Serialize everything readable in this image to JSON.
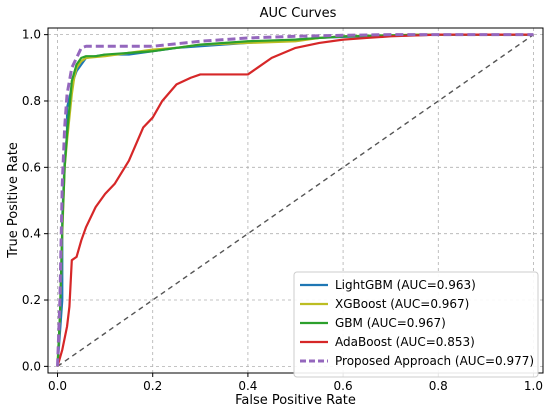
{
  "chart_data": {
    "type": "line",
    "title": "AUC Curves",
    "xlabel": "False Positive Rate",
    "ylabel": "True Positive Rate",
    "xlim": [
      -0.02,
      1.02
    ],
    "ylim": [
      -0.02,
      1.02
    ],
    "xticks": [
      "0.0",
      "0.2",
      "0.4",
      "0.6",
      "0.8",
      "1.0"
    ],
    "yticks": [
      "0.0",
      "0.2",
      "0.4",
      "0.6",
      "0.8",
      "1.0"
    ],
    "grid": true,
    "legend_position": "bottom-right",
    "reference_line": {
      "x": [
        0,
        1
      ],
      "y": [
        0,
        1
      ],
      "color": "#555555",
      "style": "dashed"
    },
    "series": [
      {
        "name": "LightGBM (AUC=0.963)",
        "color": "#1f77b4",
        "style": "solid",
        "x": [
          0,
          0.005,
          0.01,
          0.01,
          0.015,
          0.02,
          0.02,
          0.03,
          0.035,
          0.04,
          0.05,
          0.06,
          0.08,
          0.1,
          0.15,
          0.25,
          0.35,
          0.45,
          0.5,
          0.55,
          0.6,
          0.7,
          0.8,
          1.0
        ],
        "y": [
          0,
          0.1,
          0.2,
          0.45,
          0.62,
          0.7,
          0.78,
          0.84,
          0.87,
          0.89,
          0.91,
          0.93,
          0.935,
          0.94,
          0.94,
          0.96,
          0.97,
          0.98,
          0.985,
          0.99,
          0.993,
          0.996,
          1.0,
          1.0
        ]
      },
      {
        "name": "XGBoost (AUC=0.967)",
        "color": "#bcbd22",
        "style": "solid",
        "x": [
          0,
          0.005,
          0.01,
          0.015,
          0.02,
          0.025,
          0.03,
          0.035,
          0.04,
          0.05,
          0.06,
          0.1,
          0.15,
          0.2,
          0.25,
          0.3,
          0.4,
          0.5,
          0.55,
          0.6,
          0.7,
          0.75,
          1.0
        ],
        "y": [
          0,
          0.15,
          0.4,
          0.6,
          0.68,
          0.75,
          0.82,
          0.87,
          0.9,
          0.92,
          0.93,
          0.935,
          0.945,
          0.955,
          0.96,
          0.97,
          0.975,
          0.98,
          0.99,
          0.995,
          0.998,
          1.0,
          1.0
        ]
      },
      {
        "name": "GBM (AUC=0.967)",
        "color": "#2ca02c",
        "style": "solid",
        "x": [
          0,
          0.005,
          0.01,
          0.015,
          0.02,
          0.025,
          0.03,
          0.04,
          0.05,
          0.06,
          0.08,
          0.1,
          0.2,
          0.3,
          0.4,
          0.5,
          0.55,
          0.6,
          0.7,
          0.8,
          1.0
        ],
        "y": [
          0,
          0.15,
          0.42,
          0.6,
          0.7,
          0.78,
          0.86,
          0.91,
          0.93,
          0.935,
          0.935,
          0.94,
          0.95,
          0.97,
          0.98,
          0.985,
          0.99,
          0.995,
          0.998,
          1.0,
          1.0
        ]
      },
      {
        "name": "AdaBoost (AUC=0.853)",
        "color": "#d62728",
        "style": "solid",
        "x": [
          0,
          0.01,
          0.02,
          0.025,
          0.03,
          0.04,
          0.05,
          0.06,
          0.08,
          0.1,
          0.12,
          0.15,
          0.18,
          0.2,
          0.22,
          0.25,
          0.28,
          0.3,
          0.32,
          0.35,
          0.4,
          0.42,
          0.45,
          0.5,
          0.55,
          0.6,
          0.65,
          0.7,
          0.8,
          0.9,
          1.0
        ],
        "y": [
          0,
          0.05,
          0.12,
          0.18,
          0.32,
          0.33,
          0.38,
          0.42,
          0.48,
          0.52,
          0.55,
          0.62,
          0.72,
          0.75,
          0.8,
          0.85,
          0.87,
          0.88,
          0.88,
          0.88,
          0.88,
          0.9,
          0.93,
          0.96,
          0.975,
          0.985,
          0.99,
          0.995,
          1.0,
          1.0,
          1.0
        ]
      },
      {
        "name": "Proposed Approach (AUC=0.977)",
        "color": "#9467bd",
        "style": "dashed",
        "x": [
          0,
          0.005,
          0.01,
          0.015,
          0.02,
          0.025,
          0.03,
          0.04,
          0.05,
          0.06,
          0.1,
          0.2,
          0.3,
          0.4,
          0.5,
          0.6,
          0.7,
          0.8,
          1.0
        ],
        "y": [
          0,
          0.2,
          0.55,
          0.72,
          0.82,
          0.86,
          0.9,
          0.93,
          0.96,
          0.965,
          0.965,
          0.965,
          0.98,
          0.99,
          0.995,
          0.998,
          1.0,
          1.0,
          1.0
        ]
      }
    ]
  }
}
